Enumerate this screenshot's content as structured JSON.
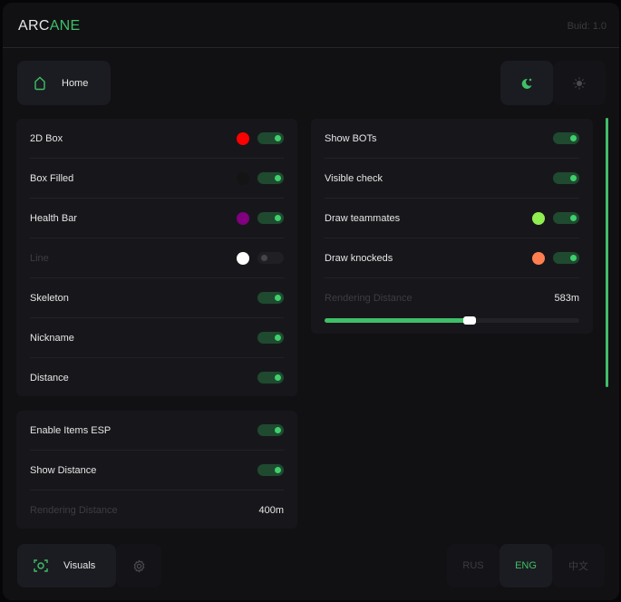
{
  "header": {
    "logo_part1": "ARC",
    "logo_part2": "ANE",
    "build": "Buid: 1.0"
  },
  "nav": {
    "home_label": "Home",
    "home_icon": "home-icon",
    "theme_dark_icon": "moon-icon",
    "theme_light_icon": "sun-icon"
  },
  "player_esp": {
    "rows": [
      {
        "label": "2D Box",
        "color": "#ff0000",
        "on": true,
        "enabled": true
      },
      {
        "label": "Box Filled",
        "color": "#141414",
        "on": true,
        "enabled": true
      },
      {
        "label": "Health Bar",
        "color": "#800080",
        "on": true,
        "enabled": true
      },
      {
        "label": "Line",
        "color": "#ffffff",
        "on": false,
        "enabled": false
      },
      {
        "label": "Skeleton",
        "on": true,
        "enabled": true
      },
      {
        "label": "Nickname",
        "on": true,
        "enabled": true
      },
      {
        "label": "Distance",
        "on": true,
        "enabled": true
      }
    ]
  },
  "bot_esp": {
    "rows": [
      {
        "label": "Show BOTs",
        "on": true
      },
      {
        "label": "Visible check",
        "on": true
      },
      {
        "label": "Draw teammates",
        "color": "#90ee50",
        "on": true
      },
      {
        "label": "Draw knockeds",
        "color": "#ff7f50",
        "on": true
      }
    ],
    "distance_label": "Rendering Distance",
    "distance_value": "583m",
    "distance_fraction": 0.57
  },
  "items_esp": {
    "rows": [
      {
        "label": "Enable Items ESP",
        "on": true
      },
      {
        "label": "Show Distance",
        "on": true
      }
    ],
    "distance_label": "Rendering Distance",
    "distance_value": "400m"
  },
  "footer": {
    "visuals_label": "Visuals",
    "visuals_icon": "eye-scan-icon",
    "settings_icon": "gear-icon",
    "languages": [
      "RUS",
      "ENG",
      "中文"
    ],
    "active_language": "ENG"
  },
  "colors": {
    "accent": "#3fbf68"
  }
}
